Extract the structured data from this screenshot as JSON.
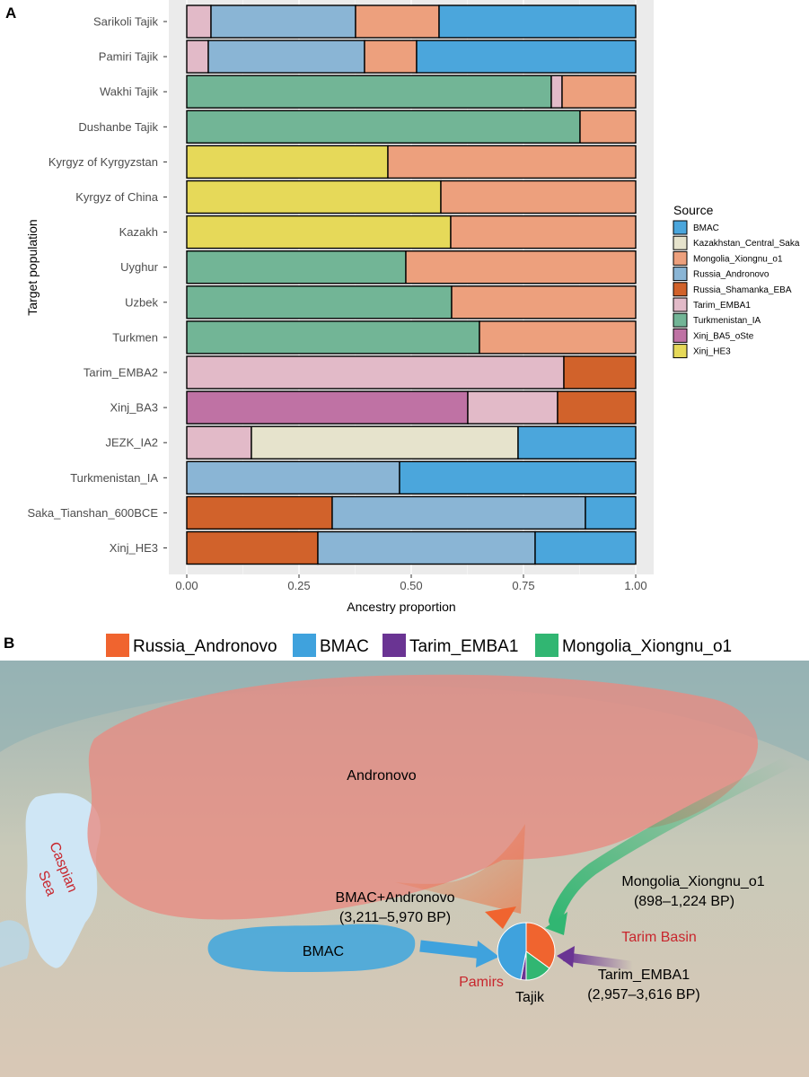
{
  "panel_a": {
    "letter": "A",
    "chart_data": {
      "type": "bar",
      "orientation": "horizontal",
      "stacked": true,
      "xlabel": "Ancestry proportion",
      "ylabel": "Target population",
      "xlim": [
        0,
        1
      ],
      "xticks": [
        "0.00",
        "0.25",
        "0.50",
        "0.75",
        "1.00"
      ],
      "legend_title": "Source",
      "legend_position": "right",
      "legend": [
        {
          "name": "BMAC",
          "color": "#4ba6dc"
        },
        {
          "name": "Kazakhstan_Central_Saka",
          "color": "#e6e3cc"
        },
        {
          "name": "Mongolia_Xiongnu_o1",
          "color": "#eda07d"
        },
        {
          "name": "Russia_Andronovo",
          "color": "#8ab5d5"
        },
        {
          "name": "Russia_Shamanka_EBA",
          "color": "#d1622b"
        },
        {
          "name": "Tarim_EMBA1",
          "color": "#e2bac8"
        },
        {
          "name": "Turkmenistan_IA",
          "color": "#72b596"
        },
        {
          "name": "Xinj_BA5_oSte",
          "color": "#bf72a4"
        },
        {
          "name": "Xinj_HE3",
          "color": "#e6d959"
        }
      ],
      "categories": [
        "Sarikoli Tajik",
        "Pamiri Tajik",
        "Wakhi Tajik",
        "Dushanbe Tajik",
        "Kyrgyz of Kyrgyzstan",
        "Kyrgyz of China",
        "Kazakh",
        "Uyghur",
        "Uzbek",
        "Turkmen",
        "Tarim_EMBA2",
        "Xinj_BA3",
        "JEZK_IA2",
        "Turkmenistan_IA",
        "Saka_Tianshan_600BCE",
        "Xinj_HE3"
      ],
      "rows": [
        [
          {
            "source": "Tarim_EMBA1",
            "value": 0.054
          },
          {
            "source": "Russia_Andronovo",
            "value": 0.322
          },
          {
            "source": "Mongolia_Xiongnu_o1",
            "value": 0.186
          },
          {
            "source": "BMAC",
            "value": 0.438
          }
        ],
        [
          {
            "source": "Tarim_EMBA1",
            "value": 0.048
          },
          {
            "source": "Russia_Andronovo",
            "value": 0.348
          },
          {
            "source": "Mongolia_Xiongnu_o1",
            "value": 0.116
          },
          {
            "source": "BMAC",
            "value": 0.488
          }
        ],
        [
          {
            "source": "Turkmenistan_IA",
            "value": 0.812
          },
          {
            "source": "Tarim_EMBA1",
            "value": 0.024
          },
          {
            "source": "Mongolia_Xiongnu_o1",
            "value": 0.164
          }
        ],
        [
          {
            "source": "Turkmenistan_IA",
            "value": 0.876
          },
          {
            "source": "Mongolia_Xiongnu_o1",
            "value": 0.124
          }
        ],
        [
          {
            "source": "Xinj_HE3",
            "value": 0.448
          },
          {
            "source": "Mongolia_Xiongnu_o1",
            "value": 0.552
          }
        ],
        [
          {
            "source": "Xinj_HE3",
            "value": 0.566
          },
          {
            "source": "Mongolia_Xiongnu_o1",
            "value": 0.434
          }
        ],
        [
          {
            "source": "Xinj_HE3",
            "value": 0.588
          },
          {
            "source": "Mongolia_Xiongnu_o1",
            "value": 0.412
          }
        ],
        [
          {
            "source": "Turkmenistan_IA",
            "value": 0.488
          },
          {
            "source": "Mongolia_Xiongnu_o1",
            "value": 0.512
          }
        ],
        [
          {
            "source": "Turkmenistan_IA",
            "value": 0.59
          },
          {
            "source": "Mongolia_Xiongnu_o1",
            "value": 0.41
          }
        ],
        [
          {
            "source": "Turkmenistan_IA",
            "value": 0.652
          },
          {
            "source": "Mongolia_Xiongnu_o1",
            "value": 0.348
          }
        ],
        [
          {
            "source": "Tarim_EMBA1",
            "value": 0.84
          },
          {
            "source": "Russia_Shamanka_EBA",
            "value": 0.16
          }
        ],
        [
          {
            "source": "Xinj_BA5_oSte",
            "value": 0.626
          },
          {
            "source": "Tarim_EMBA1",
            "value": 0.2
          },
          {
            "source": "Russia_Shamanka_EBA",
            "value": 0.174
          }
        ],
        [
          {
            "source": "Tarim_EMBA1",
            "value": 0.144
          },
          {
            "source": "Kazakhstan_Central_Saka",
            "value": 0.594
          },
          {
            "source": "BMAC",
            "value": 0.262
          }
        ],
        [
          {
            "source": "Russia_Andronovo",
            "value": 0.474
          },
          {
            "source": "BMAC",
            "value": 0.526
          }
        ],
        [
          {
            "source": "Russia_Shamanka_EBA",
            "value": 0.324
          },
          {
            "source": "Russia_Andronovo",
            "value": 0.564
          },
          {
            "source": "BMAC",
            "value": 0.112
          }
        ],
        [
          {
            "source": "Russia_Shamanka_EBA",
            "value": 0.292
          },
          {
            "source": "Russia_Andronovo",
            "value": 0.484
          },
          {
            "source": "BMAC",
            "value": 0.224
          }
        ]
      ]
    }
  },
  "panel_b": {
    "letter": "B",
    "legend": [
      {
        "name": "Russia_Andronovo",
        "color": "#f0642f"
      },
      {
        "name": "BMAC",
        "color": "#3fa2dd"
      },
      {
        "name": "Tarim_EMBA1",
        "color": "#6a3493"
      },
      {
        "name": "Mongolia_Xiongnu_o1",
        "color": "#31b672"
      }
    ],
    "labels": {
      "andronovo": "Andronovo",
      "caspian_1": "Caspian",
      "caspian_2": "Sea",
      "bmac_andronovo": "BMAC+Andronovo",
      "bmac_andronovo_date": "(3,211–5,970 BP)",
      "mongolia": "Mongolia_Xiongnu_o1",
      "mongolia_date": "(898–1,224 BP)",
      "tarim_basin": "Tarim Basin",
      "bmac": "BMAC",
      "pamirs": "Pamirs",
      "tajik": "Tajik",
      "tarim_emba1": "Tarim_EMBA1",
      "tarim_emba1_date": "(2,957–3,616 BP)"
    },
    "pie": [
      {
        "source": "Russia_Andronovo",
        "value": 0.35,
        "color": "#f0642f"
      },
      {
        "source": "Mongolia_Xiongnu_o1",
        "value": 0.15,
        "color": "#31b672"
      },
      {
        "source": "Tarim_EMBA1",
        "value": 0.03,
        "color": "#6a3493"
      },
      {
        "source": "BMAC",
        "value": 0.47,
        "color": "#3fa2dd"
      }
    ],
    "colors": {
      "map_bg": "#bdc8c3",
      "water": "#cfe6f5",
      "andronovo_region": "#e88a82",
      "bmac_region": "#46a7dc"
    }
  }
}
